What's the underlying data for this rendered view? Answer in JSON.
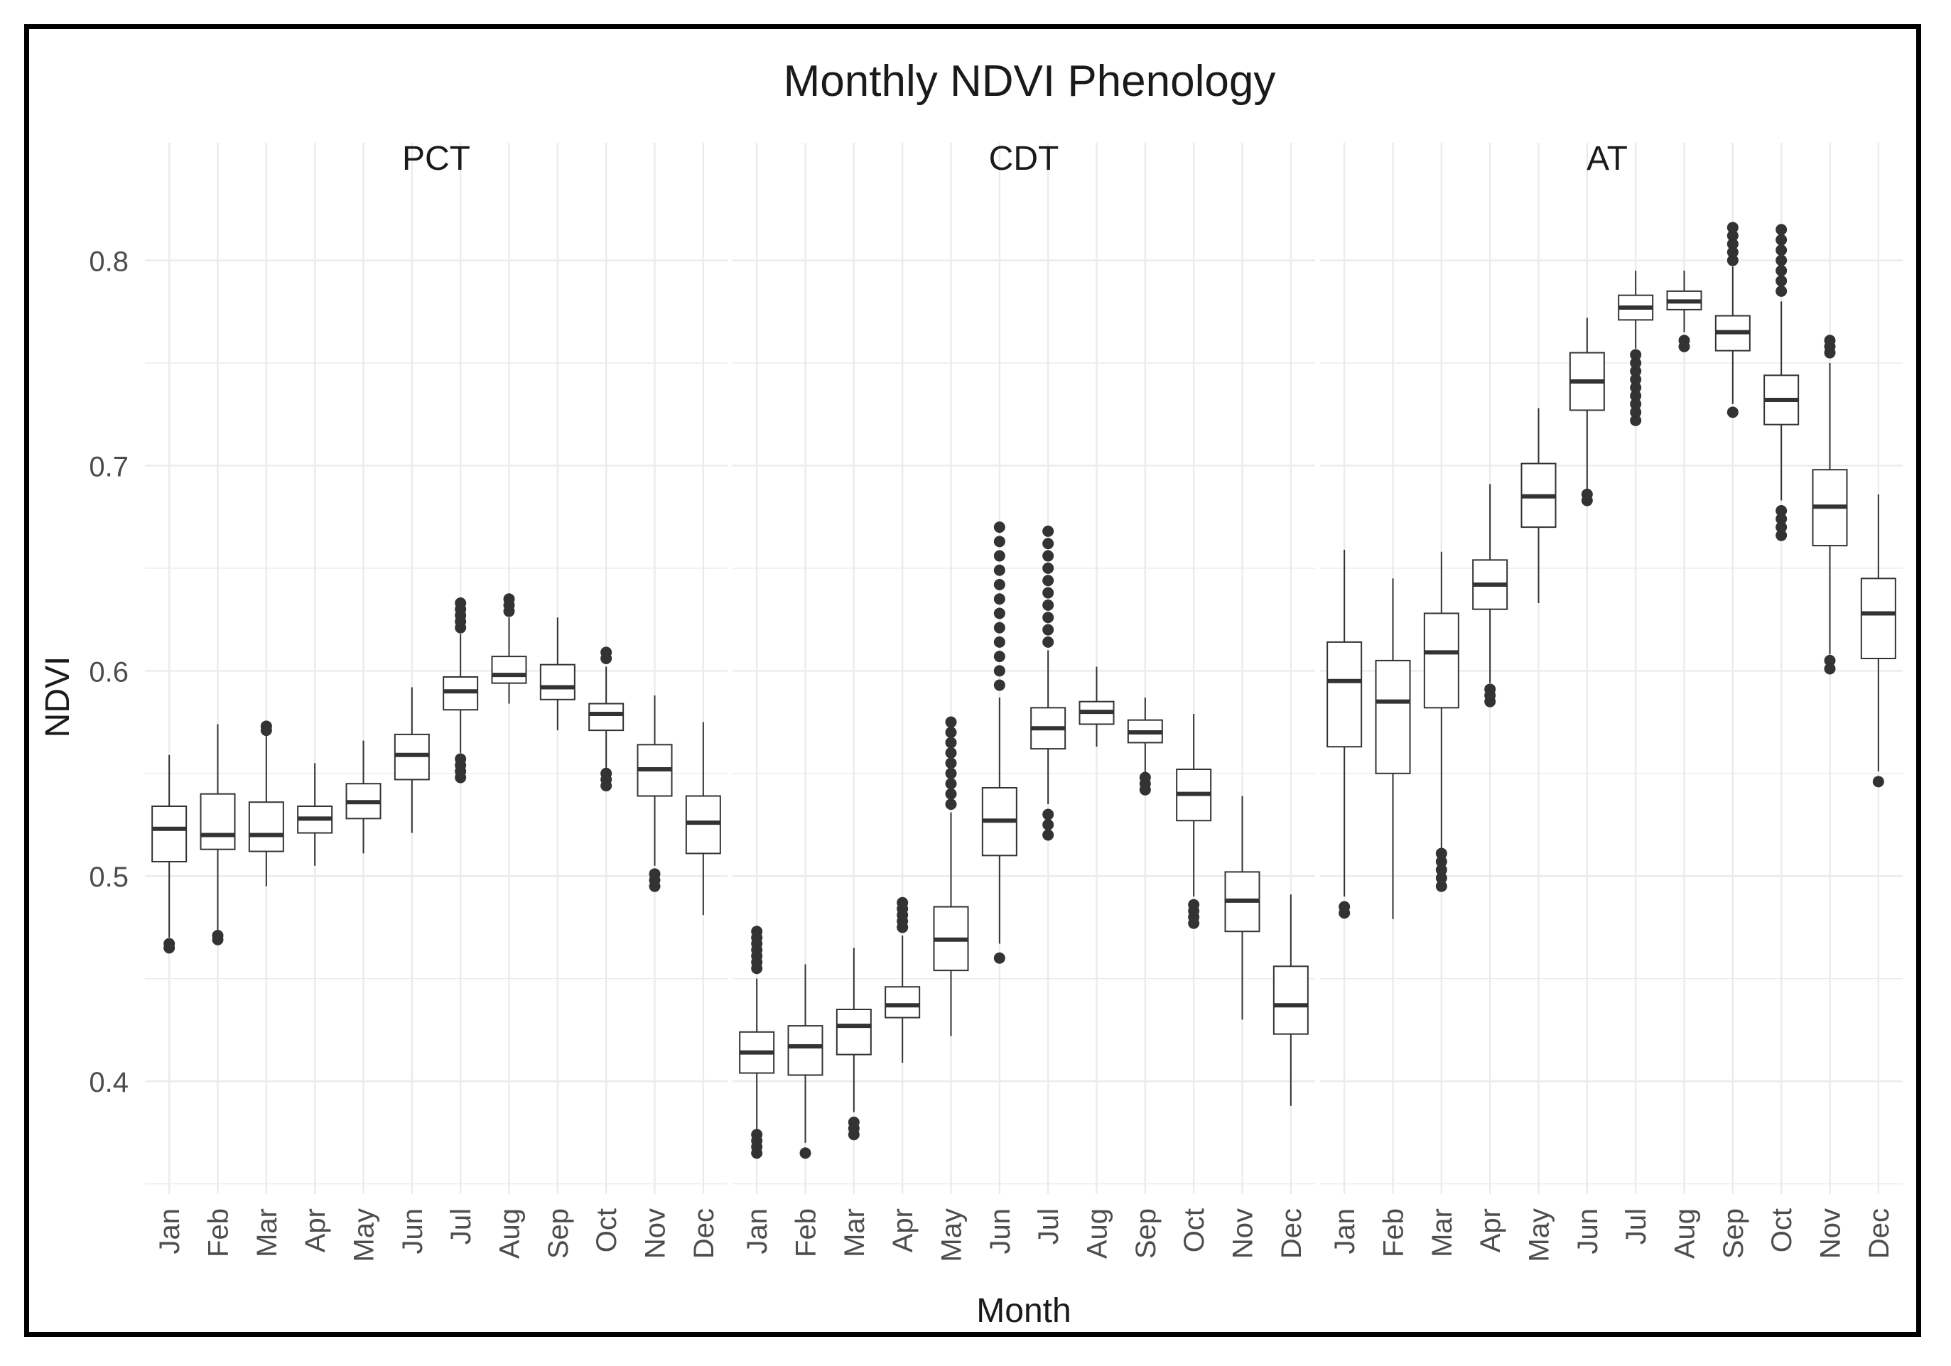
{
  "chart_data": {
    "type": "boxplot",
    "title": "Monthly NDVI Phenology",
    "xlabel": "Month",
    "ylabel": "NDVI",
    "ylim": [
      0.345,
      0.84
    ],
    "yticks": [
      0.4,
      0.5,
      0.6,
      0.7,
      0.8
    ],
    "ytick_labels": [
      "0.4",
      "0.5",
      "0.6",
      "0.7",
      "0.8"
    ],
    "categories": [
      "Jan",
      "Feb",
      "Mar",
      "Apr",
      "May",
      "Jun",
      "Jul",
      "Aug",
      "Sep",
      "Oct",
      "Nov",
      "Dec"
    ],
    "grid": true,
    "colors": {
      "box_fill": "#ffffff",
      "line": "#333333",
      "grid": "#ebebeb",
      "text": "#4d4d4d",
      "title": "#1a1a1a"
    },
    "panels": [
      {
        "name": "PCT",
        "boxes": [
          {
            "min": 0.47,
            "q1": 0.507,
            "median": 0.523,
            "q3": 0.534,
            "max": 0.559,
            "outliers": [
              0.467,
              0.465
            ]
          },
          {
            "min": 0.473,
            "q1": 0.513,
            "median": 0.52,
            "q3": 0.54,
            "max": 0.574,
            "outliers": [
              0.471,
              0.469
            ]
          },
          {
            "min": 0.495,
            "q1": 0.512,
            "median": 0.52,
            "q3": 0.536,
            "max": 0.569,
            "outliers": [
              0.573,
              0.571
            ]
          },
          {
            "min": 0.505,
            "q1": 0.521,
            "median": 0.528,
            "q3": 0.534,
            "max": 0.555,
            "outliers": []
          },
          {
            "min": 0.511,
            "q1": 0.528,
            "median": 0.536,
            "q3": 0.545,
            "max": 0.566,
            "outliers": []
          },
          {
            "min": 0.521,
            "q1": 0.547,
            "median": 0.559,
            "q3": 0.569,
            "max": 0.592,
            "outliers": []
          },
          {
            "min": 0.56,
            "q1": 0.581,
            "median": 0.59,
            "q3": 0.597,
            "max": 0.618,
            "outliers": [
              0.548,
              0.551,
              0.554,
              0.557,
              0.621,
              0.624,
              0.627,
              0.63,
              0.633
            ]
          },
          {
            "min": 0.584,
            "q1": 0.594,
            "median": 0.598,
            "q3": 0.607,
            "max": 0.626,
            "outliers": [
              0.629,
              0.632,
              0.635
            ]
          },
          {
            "min": 0.571,
            "q1": 0.586,
            "median": 0.592,
            "q3": 0.603,
            "max": 0.626,
            "outliers": []
          },
          {
            "min": 0.552,
            "q1": 0.571,
            "median": 0.579,
            "q3": 0.584,
            "max": 0.602,
            "outliers": [
              0.544,
              0.547,
              0.55,
              0.606,
              0.609
            ]
          },
          {
            "min": 0.505,
            "q1": 0.539,
            "median": 0.552,
            "q3": 0.564,
            "max": 0.588,
            "outliers": [
              0.495,
              0.498,
              0.501
            ]
          },
          {
            "min": 0.481,
            "q1": 0.511,
            "median": 0.526,
            "q3": 0.539,
            "max": 0.575,
            "outliers": []
          }
        ]
      },
      {
        "name": "CDT",
        "boxes": [
          {
            "min": 0.375,
            "q1": 0.404,
            "median": 0.414,
            "q3": 0.424,
            "max": 0.45,
            "outliers": [
              0.365,
              0.368,
              0.371,
              0.374,
              0.455,
              0.458,
              0.461,
              0.464,
              0.467,
              0.47,
              0.473
            ]
          },
          {
            "min": 0.37,
            "q1": 0.403,
            "median": 0.417,
            "q3": 0.427,
            "max": 0.457,
            "outliers": [
              0.365
            ]
          },
          {
            "min": 0.385,
            "q1": 0.413,
            "median": 0.427,
            "q3": 0.435,
            "max": 0.465,
            "outliers": [
              0.374,
              0.377,
              0.38
            ]
          },
          {
            "min": 0.409,
            "q1": 0.431,
            "median": 0.437,
            "q3": 0.446,
            "max": 0.471,
            "outliers": [
              0.475,
              0.478,
              0.481,
              0.484,
              0.487
            ]
          },
          {
            "min": 0.422,
            "q1": 0.454,
            "median": 0.469,
            "q3": 0.485,
            "max": 0.531,
            "outliers": [
              0.535,
              0.54,
              0.545,
              0.55,
              0.555,
              0.56,
              0.565,
              0.57,
              0.575
            ]
          },
          {
            "min": 0.467,
            "q1": 0.51,
            "median": 0.527,
            "q3": 0.543,
            "max": 0.587,
            "outliers": [
              0.46,
              0.593,
              0.6,
              0.607,
              0.614,
              0.621,
              0.628,
              0.635,
              0.642,
              0.649,
              0.656,
              0.663,
              0.67
            ]
          },
          {
            "min": 0.535,
            "q1": 0.562,
            "median": 0.572,
            "q3": 0.582,
            "max": 0.61,
            "outliers": [
              0.52,
              0.525,
              0.53,
              0.614,
              0.62,
              0.626,
              0.632,
              0.638,
              0.644,
              0.65,
              0.656,
              0.662,
              0.668
            ]
          },
          {
            "min": 0.563,
            "q1": 0.574,
            "median": 0.58,
            "q3": 0.585,
            "max": 0.602,
            "outliers": []
          },
          {
            "min": 0.55,
            "q1": 0.565,
            "median": 0.57,
            "q3": 0.576,
            "max": 0.587,
            "outliers": [
              0.542,
              0.545,
              0.548
            ]
          },
          {
            "min": 0.49,
            "q1": 0.527,
            "median": 0.54,
            "q3": 0.552,
            "max": 0.579,
            "outliers": [
              0.477,
              0.48,
              0.483,
              0.486
            ]
          },
          {
            "min": 0.43,
            "q1": 0.473,
            "median": 0.488,
            "q3": 0.502,
            "max": 0.539,
            "outliers": []
          },
          {
            "min": 0.388,
            "q1": 0.423,
            "median": 0.437,
            "q3": 0.456,
            "max": 0.491,
            "outliers": []
          }
        ]
      },
      {
        "name": "AT",
        "boxes": [
          {
            "min": 0.49,
            "q1": 0.563,
            "median": 0.595,
            "q3": 0.614,
            "max": 0.659,
            "outliers": [
              0.482,
              0.485
            ]
          },
          {
            "min": 0.479,
            "q1": 0.55,
            "median": 0.585,
            "q3": 0.605,
            "max": 0.645,
            "outliers": []
          },
          {
            "min": 0.513,
            "q1": 0.582,
            "median": 0.609,
            "q3": 0.628,
            "max": 0.658,
            "outliers": [
              0.495,
              0.499,
              0.503,
              0.507,
              0.511
            ]
          },
          {
            "min": 0.594,
            "q1": 0.63,
            "median": 0.642,
            "q3": 0.654,
            "max": 0.691,
            "outliers": [
              0.585,
              0.588,
              0.591
            ]
          },
          {
            "min": 0.633,
            "q1": 0.67,
            "median": 0.685,
            "q3": 0.701,
            "max": 0.728,
            "outliers": []
          },
          {
            "min": 0.688,
            "q1": 0.727,
            "median": 0.741,
            "q3": 0.755,
            "max": 0.772,
            "outliers": [
              0.683,
              0.686
            ]
          },
          {
            "min": 0.757,
            "q1": 0.771,
            "median": 0.777,
            "q3": 0.783,
            "max": 0.795,
            "outliers": [
              0.722,
              0.726,
              0.73,
              0.734,
              0.738,
              0.742,
              0.746,
              0.75,
              0.754
            ]
          },
          {
            "min": 0.765,
            "q1": 0.776,
            "median": 0.78,
            "q3": 0.785,
            "max": 0.795,
            "outliers": [
              0.758,
              0.761
            ]
          },
          {
            "min": 0.73,
            "q1": 0.756,
            "median": 0.765,
            "q3": 0.773,
            "max": 0.797,
            "outliers": [
              0.726,
              0.8,
              0.804,
              0.808,
              0.812,
              0.816
            ]
          },
          {
            "min": 0.683,
            "q1": 0.72,
            "median": 0.732,
            "q3": 0.744,
            "max": 0.78,
            "outliers": [
              0.666,
              0.67,
              0.674,
              0.678,
              0.785,
              0.79,
              0.795,
              0.8,
              0.805,
              0.81,
              0.815
            ]
          },
          {
            "min": 0.608,
            "q1": 0.661,
            "median": 0.68,
            "q3": 0.698,
            "max": 0.75,
            "outliers": [
              0.601,
              0.605,
              0.755,
              0.758,
              0.761
            ]
          },
          {
            "min": 0.551,
            "q1": 0.606,
            "median": 0.628,
            "q3": 0.645,
            "max": 0.686,
            "outliers": [
              0.546
            ]
          }
        ]
      }
    ]
  }
}
